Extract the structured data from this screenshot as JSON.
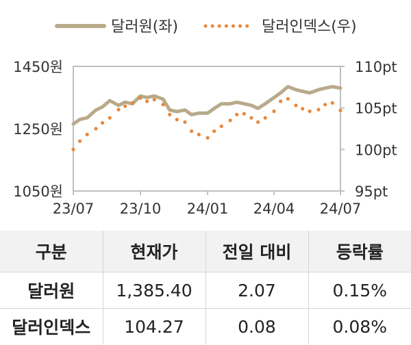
{
  "chart_data": {
    "type": "line",
    "legend": [
      "달러원(좌)",
      "달러인덱스(우)"
    ],
    "legend_position": "top",
    "x_ticks": [
      "23/07",
      "23/10",
      "24/01",
      "24/04",
      "24/07"
    ],
    "y_left_ticks": [
      "1450원",
      "1250원",
      "1050원"
    ],
    "y_right_ticks": [
      "110pt",
      "105pt",
      "100pt",
      "95pt"
    ],
    "y_left_lim": [
      1050,
      1450
    ],
    "y_right_lim": [
      95,
      110
    ],
    "grid": false,
    "series": [
      {
        "name": "달러원(좌)",
        "axis": "left",
        "style": "solid",
        "color": "#b8aa8a",
        "x": [
          "2023-07-01",
          "2023-07-10",
          "2023-07-20",
          "2023-08-01",
          "2023-08-10",
          "2023-08-20",
          "2023-09-01",
          "2023-09-10",
          "2023-09-20",
          "2023-10-01",
          "2023-10-10",
          "2023-10-20",
          "2023-11-01",
          "2023-11-10",
          "2023-11-20",
          "2023-12-01",
          "2023-12-10",
          "2023-12-20",
          "2024-01-01",
          "2024-01-10",
          "2024-01-20",
          "2024-02-01",
          "2024-02-10",
          "2024-02-20",
          "2024-03-01",
          "2024-03-10",
          "2024-03-20",
          "2024-04-01",
          "2024-04-10",
          "2024-04-20",
          "2024-05-01",
          "2024-05-10",
          "2024-05-20",
          "2024-06-01",
          "2024-06-10",
          "2024-06-20",
          "2024-07-01"
        ],
        "values": [
          1265,
          1280,
          1285,
          1310,
          1320,
          1340,
          1325,
          1335,
          1330,
          1355,
          1350,
          1355,
          1345,
          1310,
          1305,
          1310,
          1295,
          1300,
          1300,
          1315,
          1330,
          1330,
          1335,
          1330,
          1325,
          1315,
          1330,
          1350,
          1365,
          1385,
          1375,
          1370,
          1365,
          1375,
          1380,
          1385,
          1380
        ]
      },
      {
        "name": "달러인덱스(우)",
        "axis": "right",
        "style": "dotted",
        "color": "#e8873a",
        "x": [
          "2023-07-01",
          "2023-07-10",
          "2023-07-20",
          "2023-08-01",
          "2023-08-10",
          "2023-08-20",
          "2023-09-01",
          "2023-09-10",
          "2023-09-20",
          "2023-10-01",
          "2023-10-10",
          "2023-10-20",
          "2023-11-01",
          "2023-11-10",
          "2023-11-20",
          "2023-12-01",
          "2023-12-10",
          "2023-12-20",
          "2024-01-01",
          "2024-01-10",
          "2024-01-20",
          "2024-02-01",
          "2024-02-10",
          "2024-02-20",
          "2024-03-01",
          "2024-03-10",
          "2024-03-20",
          "2024-04-01",
          "2024-04-10",
          "2024-04-20",
          "2024-05-01",
          "2024-05-10",
          "2024-05-20",
          "2024-06-01",
          "2024-06-10",
          "2024-06-20",
          "2024-07-01"
        ],
        "values": [
          100,
          101,
          101.8,
          102.5,
          103.2,
          103.8,
          104.8,
          105.2,
          105.6,
          106.2,
          105.8,
          106.0,
          105.4,
          104.2,
          103.6,
          103.3,
          102.2,
          101.8,
          101.4,
          102.2,
          102.8,
          103.5,
          104.2,
          104.3,
          103.8,
          103.3,
          103.8,
          104.6,
          105.8,
          106.1,
          105.3,
          104.9,
          104.6,
          104.8,
          105.4,
          105.6,
          104.7
        ]
      }
    ]
  },
  "table": {
    "headers": [
      "구분",
      "현재가",
      "전일 대비",
      "등락률"
    ],
    "rows": [
      [
        "달러원",
        "1,385.40",
        "2.07",
        "0.15%"
      ],
      [
        "달러인덱스",
        "104.27",
        "0.08",
        "0.08%"
      ]
    ]
  }
}
